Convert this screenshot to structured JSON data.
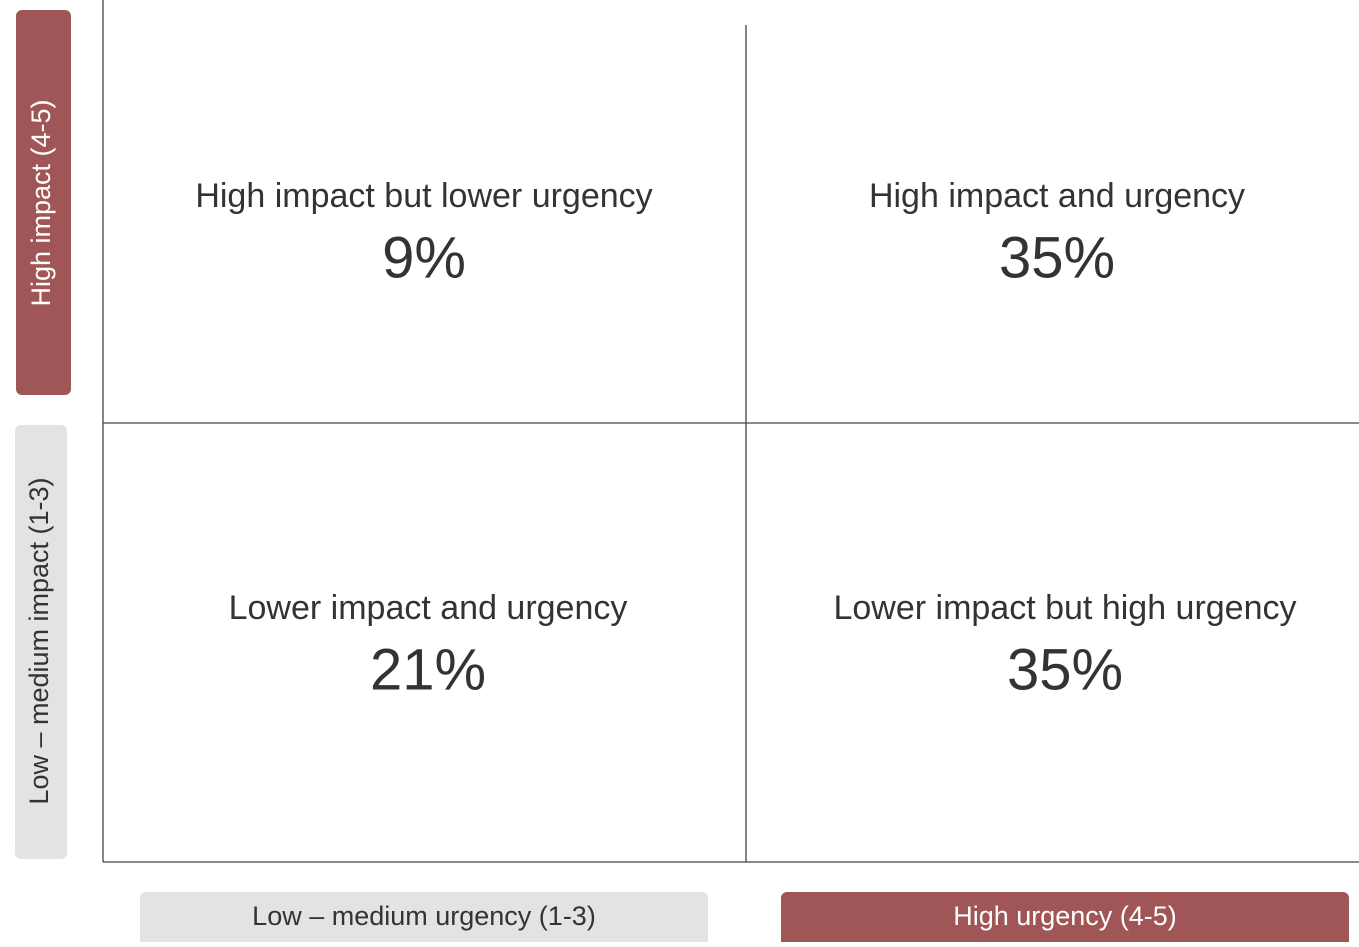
{
  "y_axis": {
    "high": "High impact (4-5)",
    "low": "Low – medium impact (1-3)"
  },
  "x_axis": {
    "low": "Low – medium urgency (1-3)",
    "high": "High urgency (4-5)"
  },
  "quadrants": [
    {
      "label": "High impact but lower urgency",
      "value": "9%"
    },
    {
      "label": "High impact and urgency",
      "value": "35%"
    },
    {
      "label": "Lower impact and urgency",
      "value": "21%"
    },
    {
      "label": "Lower impact but high urgency",
      "value": "35%"
    }
  ]
}
